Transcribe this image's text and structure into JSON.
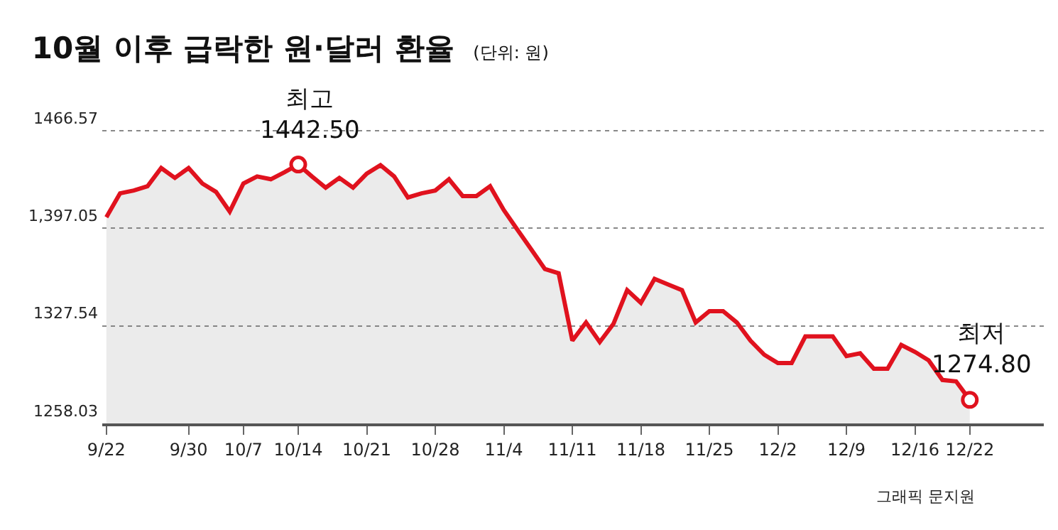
{
  "chart_data": {
    "type": "area",
    "title": "10월 이후 급락한 원·달러 환율",
    "subtitle": "(단위: 원)",
    "categories": [
      "9/22",
      null,
      null,
      null,
      null,
      null,
      "9/30",
      null,
      null,
      null,
      "10/7",
      null,
      null,
      null,
      "10/14",
      null,
      null,
      null,
      null,
      "10/21",
      null,
      null,
      null,
      null,
      "10/28",
      null,
      null,
      null,
      null,
      "11/4",
      null,
      null,
      null,
      null,
      "11/11",
      null,
      null,
      null,
      null,
      "11/18",
      null,
      null,
      null,
      null,
      "11/25",
      null,
      null,
      null,
      null,
      "12/2",
      null,
      null,
      null,
      null,
      "12/9",
      null,
      null,
      null,
      null,
      "12/16",
      null,
      null,
      null,
      "12/22"
    ],
    "series": [
      {
        "color": "#e0121e",
        "values": [
          1405,
          1422,
          1424,
          1427,
          1440,
          1433,
          1440,
          1429,
          1423,
          1409,
          1429,
          1434,
          1432,
          1437,
          1442.5,
          1434,
          1426,
          1433,
          1426,
          1436,
          1442,
          1434,
          1419,
          1422,
          1424,
          1432,
          1420,
          1420,
          1427,
          1410,
          1396,
          1382,
          1368,
          1365,
          1317,
          1330,
          1316,
          1329,
          1353,
          1344,
          1361,
          1357,
          1353,
          1330,
          1338,
          1338,
          1330,
          1317,
          1307,
          1301,
          1301,
          1320,
          1320,
          1320,
          1306,
          1308,
          1297,
          1297,
          1314,
          1309,
          1303,
          1289,
          1288,
          1274.8
        ]
      }
    ],
    "ylim": [
      1258.03,
      1466.57
    ],
    "yticks": [
      1258.03,
      1327.54,
      {
        "value": 1397.05,
        "label": "1,397.05"
      },
      1466.57
    ],
    "grid": "y",
    "marker": "none",
    "line_style": "solid",
    "annotations": [
      {
        "text": "최고\n1442.50",
        "x": "10/14",
        "y": 1442.5
      },
      {
        "text": "최저\n1274.80",
        "x": "12/22",
        "y": 1274.8
      },
      "그래픽 문지원"
    ]
  }
}
